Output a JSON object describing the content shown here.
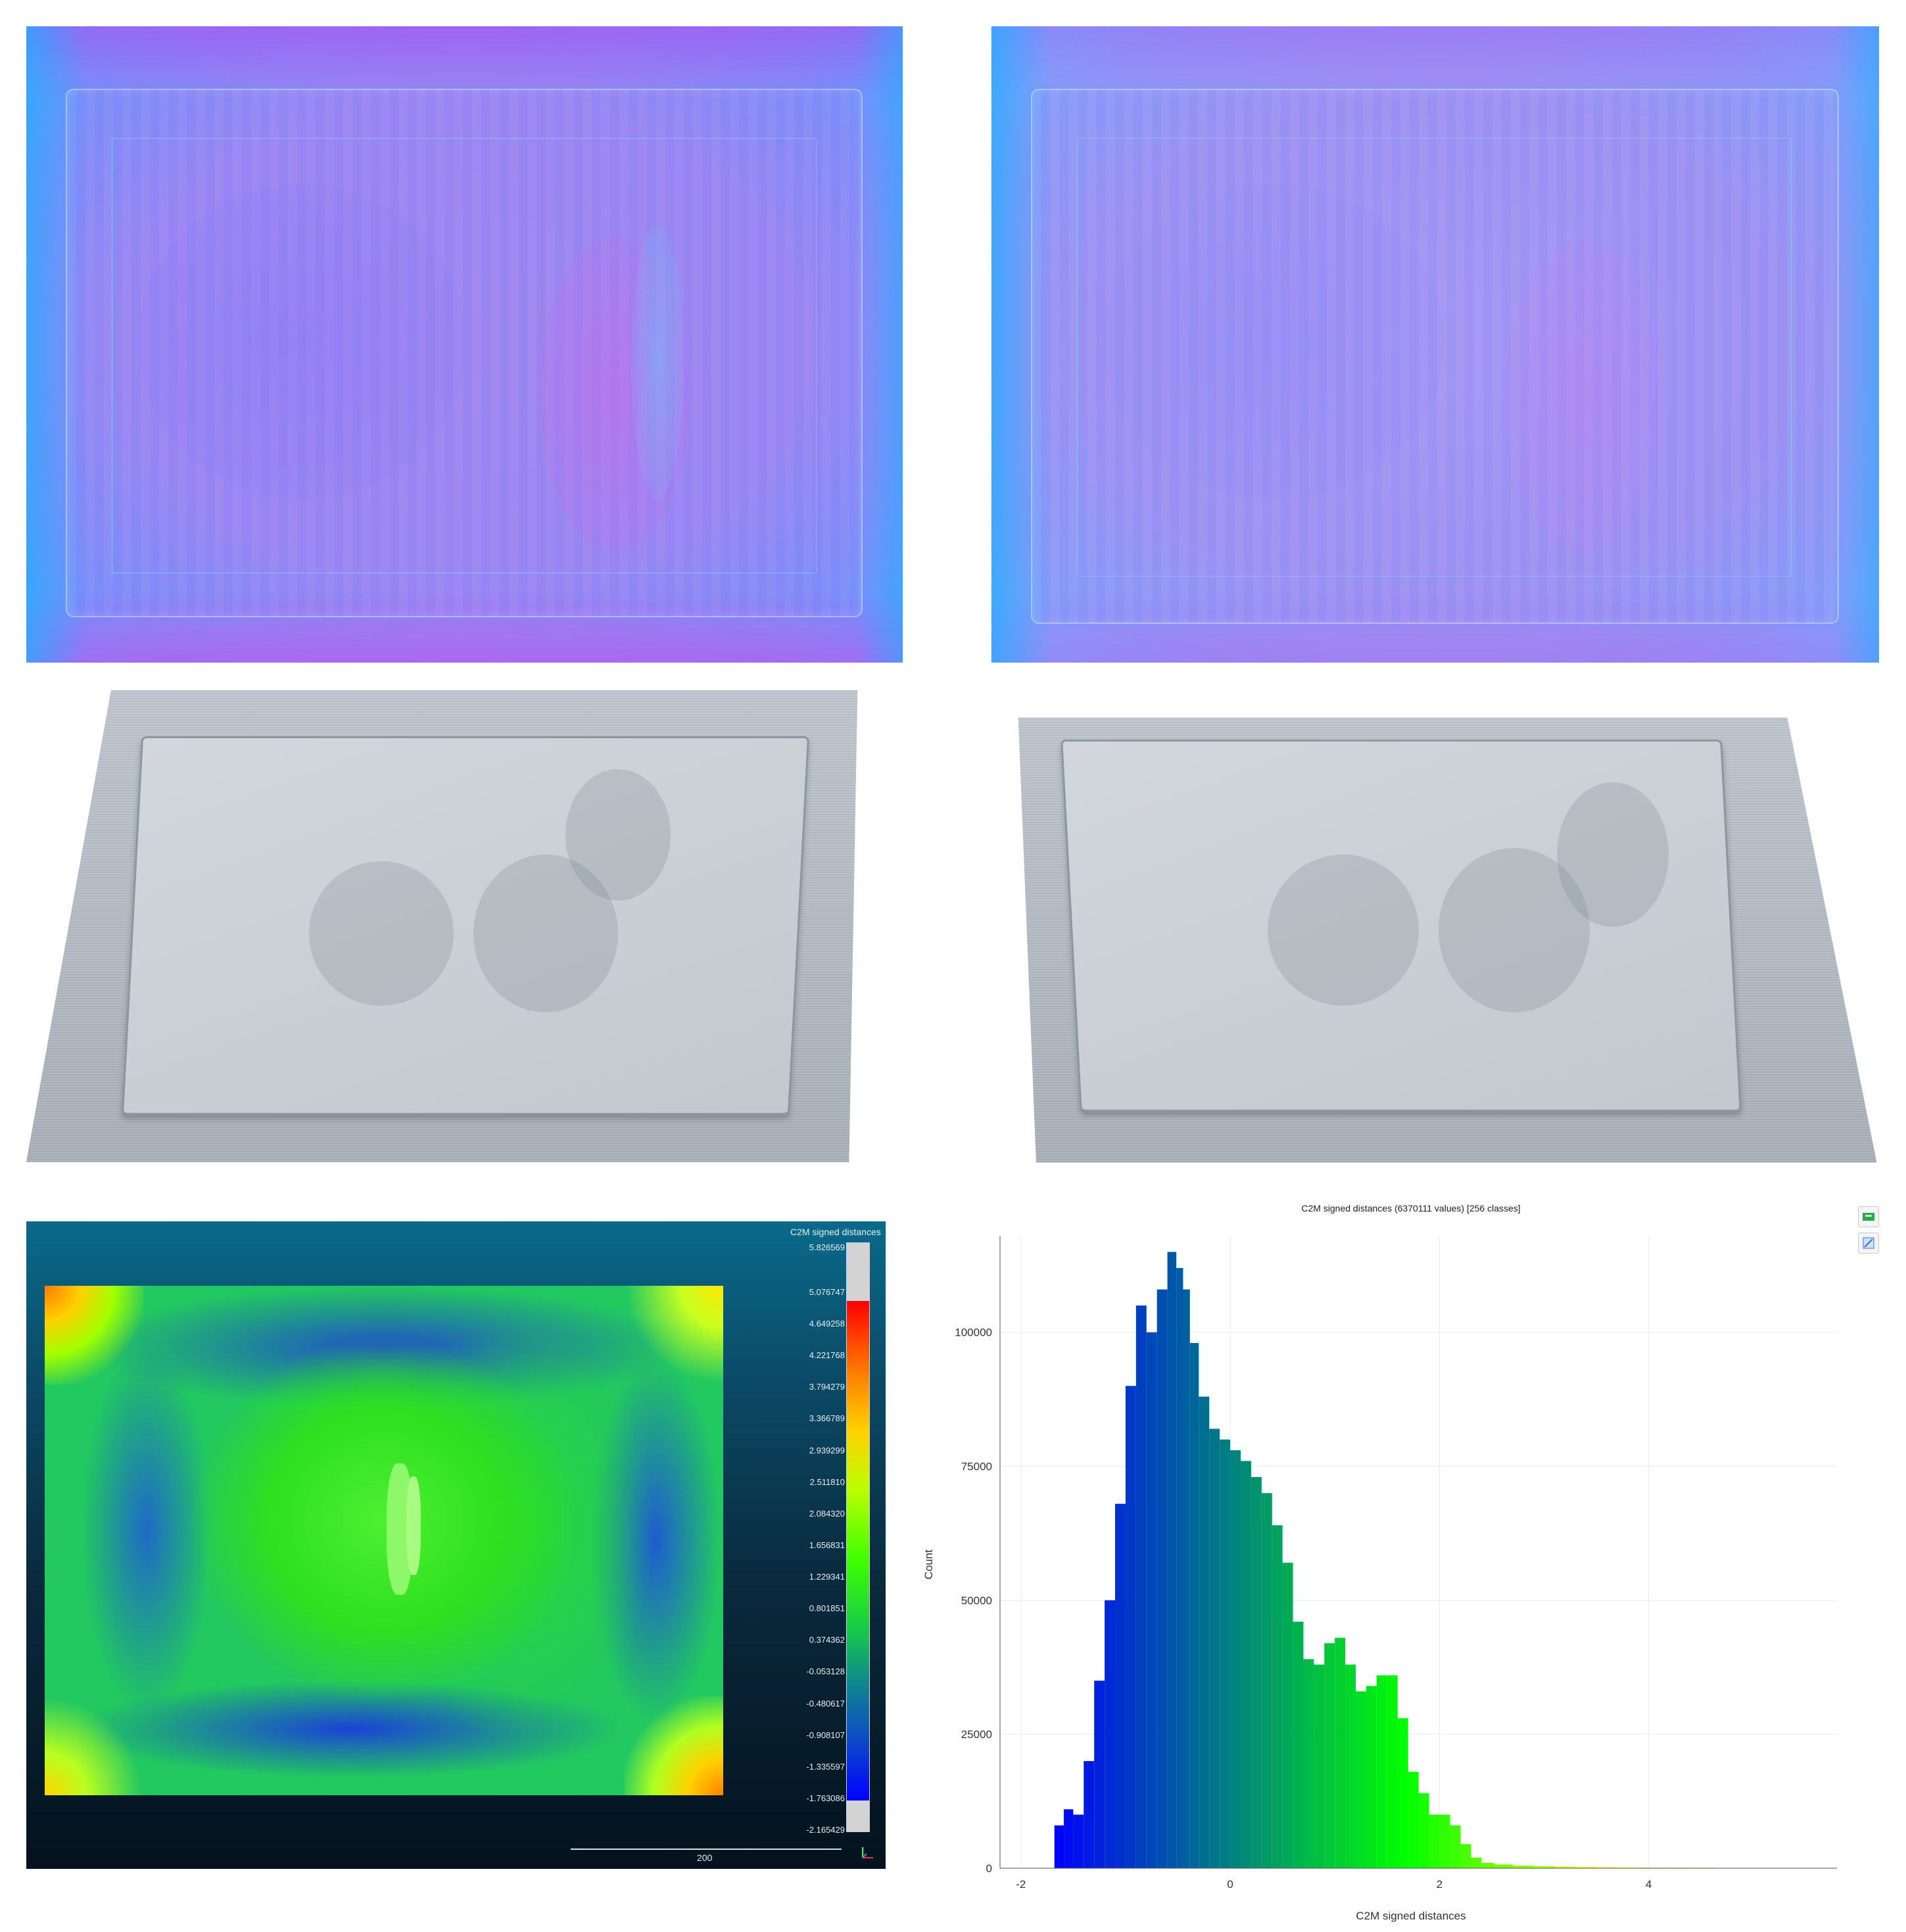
{
  "heatmap": {
    "scale_title": "C2M signed distances",
    "ticks": [
      "5.826569",
      "5.076747",
      "4.649258",
      "4.221768",
      "3.794279",
      "3.366789",
      "2.939299",
      "2.511810",
      "2.084320",
      "1.656831",
      "1.229341",
      "0.801851",
      "0.374362",
      "-0.053128",
      "-0.480617",
      "-0.908107",
      "-1.335597",
      "-1.763086",
      "-2.165429"
    ],
    "scalebar_label": "200"
  },
  "chart_data": {
    "type": "bar",
    "title": "C2M signed distances (6370111 values)  [256 classes]",
    "xlabel": "C2M signed distances",
    "ylabel": "Count",
    "xlim": [
      -2.2,
      5.8
    ],
    "ylim": [
      0,
      118000
    ],
    "x_ticks": [
      "-2",
      "0",
      "2",
      "4"
    ],
    "y_ticks": [
      "0",
      "25000",
      "50000",
      "75000",
      "100000"
    ],
    "grid": true,
    "colors": {
      "low": "#0000ff",
      "mid": "#00ff00",
      "high": "#ff0000"
    },
    "x": [
      -1.63,
      -1.55,
      -1.45,
      -1.35,
      -1.25,
      -1.15,
      -1.05,
      -0.95,
      -0.85,
      -0.75,
      -0.65,
      -0.55,
      -0.48,
      -0.42,
      -0.35,
      -0.25,
      -0.15,
      -0.05,
      0.05,
      0.15,
      0.25,
      0.35,
      0.45,
      0.55,
      0.65,
      0.75,
      0.85,
      0.95,
      1.05,
      1.15,
      1.25,
      1.35,
      1.45,
      1.55,
      1.65,
      1.75,
      1.85,
      1.95,
      2.05,
      2.15,
      2.25,
      2.35,
      2.45,
      2.6,
      2.8,
      3.0,
      3.2,
      3.4,
      3.6,
      3.8,
      4.0,
      4.2,
      4.5,
      4.8,
      5.1
    ],
    "values": [
      8000,
      11000,
      10000,
      20000,
      35000,
      50000,
      68000,
      90000,
      105000,
      100000,
      108000,
      115000,
      112000,
      108000,
      98000,
      88000,
      82000,
      80000,
      78000,
      76000,
      73000,
      70000,
      64000,
      57000,
      46000,
      39000,
      38000,
      42000,
      43000,
      38000,
      33000,
      34000,
      36000,
      36000,
      28000,
      18000,
      14000,
      10000,
      10000,
      8000,
      4500,
      2000,
      1000,
      700,
      500,
      400,
      300,
      250,
      200,
      150,
      120,
      100,
      80,
      60,
      40
    ]
  }
}
